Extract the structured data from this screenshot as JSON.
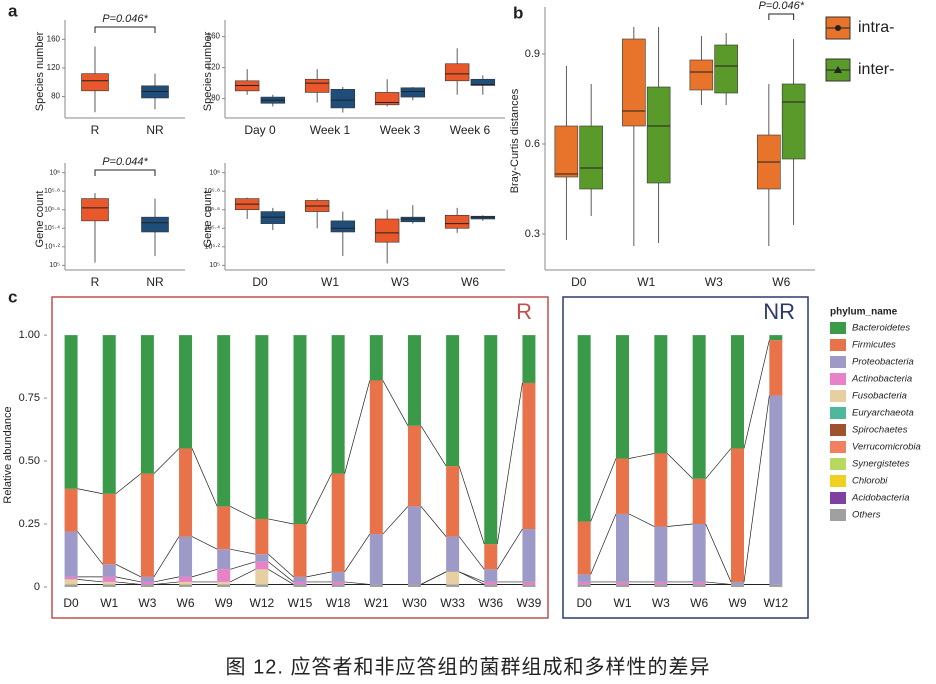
{
  "panel_labels": [
    "a",
    "b",
    "c"
  ],
  "caption": "图 12. 应答者和非应答组的菌群组成和多样性的差异",
  "chart_data": [
    {
      "type": "box",
      "ylabel": "Species number",
      "categories": [
        "R",
        "NR"
      ],
      "series": [
        {
          "colors": [
            "#e8582a",
            "#1f4e7a"
          ],
          "values": [
            [
              58,
              88,
              102,
              112,
              150
            ],
            [
              62,
              78,
              87,
              95,
              112
            ]
          ]
        }
      ],
      "ylim": [
        50,
        180
      ],
      "yticks": [
        80,
        120,
        160
      ],
      "annotation": "P=0.046*"
    },
    {
      "type": "box",
      "ylabel": "Species number",
      "categories": [
        "Day 0",
        "Week 1",
        "Week 3",
        "Week 6"
      ],
      "series": [
        {
          "color": "#e8582a",
          "values": [
            [
              85,
              90,
              97,
              103,
              118
            ],
            [
              75,
              88,
              100,
              105,
              118
            ],
            [
              70,
              72,
              75,
              88,
              105
            ],
            [
              85,
              103,
              112,
              125,
              145
            ]
          ]
        },
        {
          "color": "#1f4e7a",
          "values": [
            [
              70,
              74,
              78,
              82,
              85
            ],
            [
              62,
              68,
              78,
              92,
              95
            ],
            [
              78,
              82,
              89,
              94,
              95
            ],
            [
              85,
              97,
              98,
              105,
              110
            ]
          ]
        }
      ],
      "ylim": [
        55,
        175
      ],
      "yticks": [
        80,
        120,
        160
      ]
    },
    {
      "type": "box",
      "ylabel": "Gene count",
      "log": true,
      "categories": [
        "R",
        "NR"
      ],
      "series": [
        {
          "colors": [
            "#e8582a",
            "#1f4e7a"
          ],
          "values": [
            [
              107152,
              301995,
              416869,
              524807,
              602560
            ],
            [
              125893,
              229087,
              288403,
              331131,
              524807
            ]
          ]
        }
      ],
      "ylim": [
        89125,
        1122018
      ],
      "yticks": [
        {
          "value": 100000,
          "label": "10⁵"
        },
        {
          "value": 158489,
          "label": "10⁵·²"
        },
        {
          "value": 251189,
          "label": "10⁵·⁴"
        },
        {
          "value": 398107,
          "label": "10⁵·⁶"
        },
        {
          "value": 630957,
          "label": "10⁵·⁸"
        },
        {
          "value": 1000000,
          "label": "10⁶"
        }
      ],
      "annotation": "P=0.044*"
    },
    {
      "type": "box",
      "ylabel": "Gene count",
      "log": true,
      "categories": [
        "D0",
        "W1",
        "W3",
        "W6"
      ],
      "series": [
        {
          "color": "#e8582a",
          "values": [
            [
              316228,
              398107,
              457088,
              524807,
              537032
            ],
            [
              251189,
              380189,
              436516,
              501187,
              524807
            ],
            [
              104713,
              177828,
              223872,
              316228,
              398107
            ],
            [
              223872,
              251189,
              281838,
              346737,
              416869
            ]
          ]
        },
        {
          "color": "#1f4e7a",
          "values": [
            [
              239883,
              281838,
              331131,
              380189,
              416869
            ],
            [
              125893,
              229087,
              251189,
              301995,
              380189
            ],
            [
              281838,
              295121,
              316228,
              331131,
              446684
            ],
            [
              301995,
              316228,
              331131,
              338844,
              346737
            ]
          ]
        }
      ],
      "ylim": [
        89125,
        1122018
      ],
      "yticks": [
        {
          "value": 100000,
          "label": "10⁵"
        },
        {
          "value": 158489,
          "label": "10⁵·²"
        },
        {
          "value": 251189,
          "label": "10⁵·⁴"
        },
        {
          "value": 398107,
          "label": "10⁵·⁶"
        },
        {
          "value": 630957,
          "label": "10⁵·⁸"
        },
        {
          "value": 1000000,
          "label": "10⁶"
        }
      ]
    },
    {
      "type": "box",
      "ylabel": "Bray-Curtis distances",
      "categories": [
        "D0",
        "W1",
        "W3",
        "W6"
      ],
      "legend": true,
      "series": [
        {
          "name": "intra-",
          "color": "#e8732a",
          "values": [
            [
              0.28,
              0.49,
              0.5,
              0.66,
              0.86
            ],
            [
              0.26,
              0.66,
              0.71,
              0.95,
              0.99
            ],
            [
              0.73,
              0.78,
              0.84,
              0.88,
              0.96
            ],
            [
              0.26,
              0.45,
              0.54,
              0.63,
              0.8
            ]
          ]
        },
        {
          "name": "inter-",
          "color": "#5a9a2a",
          "values": [
            [
              0.36,
              0.45,
              0.52,
              0.66,
              0.8
            ],
            [
              0.27,
              0.47,
              0.66,
              0.79,
              0.99
            ],
            [
              0.73,
              0.77,
              0.86,
              0.93,
              0.97
            ],
            [
              0.33,
              0.55,
              0.74,
              0.8,
              0.95
            ]
          ]
        }
      ],
      "ylim": [
        0.18,
        1.04
      ],
      "yticks": [
        0.3,
        0.6,
        0.9
      ],
      "annotation": "P=0.046*"
    },
    {
      "type": "stacked_bar",
      "ylabel": "Relative abundance",
      "legend_title": "phylum_name",
      "panels": [
        {
          "title": "R",
          "categories": [
            "D0",
            "W1",
            "W3",
            "W6",
            "W9",
            "W12",
            "W15",
            "W18",
            "W21",
            "W30",
            "W33",
            "W36",
            "W39"
          ]
        },
        {
          "title": "NR",
          "categories": [
            "D0",
            "W1",
            "W3",
            "W6",
            "W9",
            "W12"
          ]
        }
      ],
      "series": [
        {
          "name": "Bacteroidetes",
          "color": "#3a9a4a",
          "values": [
            [
              0.61,
              0.63,
              0.55,
              0.45,
              0.68,
              0.73,
              0.75,
              0.55,
              0.18,
              0.36,
              0.52,
              0.83,
              0.19
            ],
            [
              0.74,
              0.49,
              0.47,
              0.57,
              0.45,
              0.02
            ]
          ]
        },
        {
          "name": "Firmicutes",
          "color": "#e8734a",
          "values": [
            [
              0.17,
              0.28,
              0.41,
              0.35,
              0.17,
              0.14,
              0.21,
              0.39,
              0.61,
              0.32,
              0.28,
              0.1,
              0.58
            ],
            [
              0.21,
              0.22,
              0.29,
              0.18,
              0.53,
              0.22
            ]
          ]
        },
        {
          "name": "Proteobacteria",
          "color": "#9d9ac8",
          "values": [
            [
              0.18,
              0.05,
              0.02,
              0.16,
              0.08,
              0.03,
              0.02,
              0.04,
              0.2,
              0.31,
              0.14,
              0.05,
              0.21
            ],
            [
              0.03,
              0.27,
              0.22,
              0.23,
              0.01,
              0.75
            ]
          ]
        },
        {
          "name": "Actinobacteria",
          "color": "#e882c8",
          "values": [
            [
              0.01,
              0.02,
              0.01,
              0.02,
              0.05,
              0.03,
              0.01,
              0.01,
              0,
              0,
              0,
              0.01,
              0.01
            ],
            [
              0.01,
              0.01,
              0.01,
              0.01,
              0,
              0
            ]
          ]
        },
        {
          "name": "Fusobacteria",
          "color": "#e6cfa0",
          "values": [
            [
              0.02,
              0.01,
              0,
              0.01,
              0.01,
              0.06,
              0,
              0,
              0,
              0,
              0.05,
              0,
              0
            ],
            [
              0,
              0,
              0,
              0,
              0,
              0
            ]
          ]
        },
        {
          "name": "Euryarchaeota",
          "color": "#4fb89a",
          "values": [
            [
              0,
              0,
              0,
              0,
              0,
              0,
              0,
              0,
              0,
              0,
              0,
              0,
              0
            ],
            [
              0,
              0,
              0,
              0,
              0,
              0
            ]
          ]
        },
        {
          "name": "Spirochaetes",
          "color": "#a0522d",
          "values": [
            [
              0,
              0,
              0,
              0,
              0,
              0,
              0,
              0,
              0,
              0,
              0,
              0,
              0
            ],
            [
              0,
              0,
              0,
              0,
              0,
              0
            ]
          ]
        },
        {
          "name": "Verrucomicrobia",
          "color": "#f08060",
          "values": [
            [
              0,
              0,
              0,
              0,
              0,
              0,
              0,
              0,
              0,
              0,
              0,
              0,
              0
            ],
            [
              0,
              0,
              0,
              0,
              0,
              0
            ]
          ]
        },
        {
          "name": "Synergistetes",
          "color": "#b8d860",
          "values": [
            [
              0,
              0,
              0,
              0,
              0,
              0,
              0,
              0,
              0,
              0,
              0,
              0,
              0
            ],
            [
              0,
              0,
              0,
              0,
              0,
              0
            ]
          ]
        },
        {
          "name": "Chlorobi",
          "color": "#f0d020",
          "values": [
            [
              0,
              0,
              0,
              0,
              0,
              0,
              0,
              0,
              0,
              0,
              0,
              0,
              0
            ],
            [
              0,
              0,
              0,
              0,
              0,
              0
            ]
          ]
        },
        {
          "name": "Acidobacteria",
          "color": "#8040a0",
          "values": [
            [
              0,
              0,
              0,
              0,
              0,
              0,
              0,
              0,
              0,
              0,
              0,
              0,
              0
            ],
            [
              0,
              0,
              0,
              0,
              0,
              0
            ]
          ]
        },
        {
          "name": "Others",
          "color": "#a0a0a0",
          "values": [
            [
              0.01,
              0.01,
              0.01,
              0.01,
              0.01,
              0.01,
              0.01,
              0.01,
              0.01,
              0.01,
              0.01,
              0.01,
              0.01
            ],
            [
              0.01,
              0.01,
              0.01,
              0.01,
              0.01,
              0.01
            ]
          ]
        }
      ],
      "ylim": [
        -0.02,
        1.06
      ],
      "yticks": [
        0,
        0.25,
        {
          "value": 0.5,
          "label": "0.50"
        },
        0.75,
        {
          "value": 1,
          "label": "1.00"
        }
      ]
    }
  ]
}
